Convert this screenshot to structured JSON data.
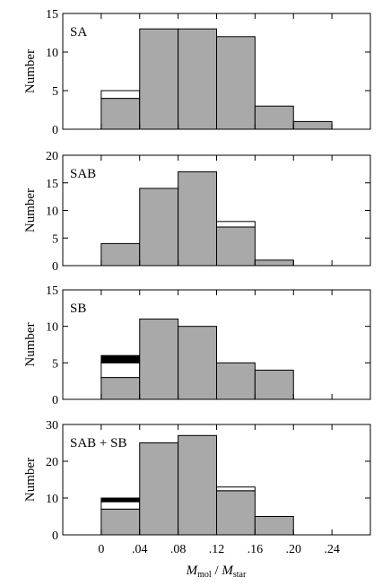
{
  "chart_data": [
    {
      "type": "bar",
      "panel_label": "SA",
      "ylabel": "Number",
      "ylim": [
        0,
        15
      ],
      "yticks": [
        0,
        5,
        10,
        15
      ],
      "bins": [
        "0-.04",
        ".04-.08",
        ".08-.12",
        ".12-.16",
        ".16-.20",
        ".20-.24"
      ],
      "series": [
        {
          "fill": "gray",
          "values": [
            4,
            13,
            13,
            12,
            3,
            1
          ]
        },
        {
          "fill": "white",
          "values": [
            1,
            0,
            0,
            0,
            0,
            0
          ]
        },
        {
          "fill": "black",
          "values": [
            0,
            0,
            0,
            0,
            0,
            0
          ]
        }
      ]
    },
    {
      "type": "bar",
      "panel_label": "SAB",
      "ylabel": "Number",
      "ylim": [
        0,
        20
      ],
      "yticks": [
        0,
        5,
        10,
        15,
        20
      ],
      "bins": [
        "0-.04",
        ".04-.08",
        ".08-.12",
        ".12-.16",
        ".16-.20",
        ".20-.24"
      ],
      "series": [
        {
          "fill": "gray",
          "values": [
            4,
            14,
            17,
            7,
            1,
            0
          ]
        },
        {
          "fill": "white",
          "values": [
            0,
            0,
            0,
            1,
            0,
            0
          ]
        },
        {
          "fill": "black",
          "values": [
            0,
            0,
            0,
            0,
            0,
            0
          ]
        }
      ]
    },
    {
      "type": "bar",
      "panel_label": "SB",
      "ylabel": "Number",
      "ylim": [
        0,
        15
      ],
      "yticks": [
        0,
        5,
        10,
        15
      ],
      "bins": [
        "0-.04",
        ".04-.08",
        ".08-.12",
        ".12-.16",
        ".16-.20",
        ".20-.24"
      ],
      "series": [
        {
          "fill": "gray",
          "values": [
            3,
            11,
            10,
            5,
            4,
            0
          ]
        },
        {
          "fill": "white",
          "values": [
            2,
            0,
            0,
            0,
            0,
            0
          ]
        },
        {
          "fill": "black",
          "values": [
            1,
            0,
            0,
            0,
            0,
            0
          ]
        }
      ]
    },
    {
      "type": "bar",
      "panel_label": "SAB + SB",
      "ylabel": "Number",
      "ylim": [
        0,
        30
      ],
      "yticks": [
        0,
        10,
        20,
        30
      ],
      "bins": [
        "0-.04",
        ".04-.08",
        ".08-.12",
        ".12-.16",
        ".16-.20",
        ".20-.24"
      ],
      "series": [
        {
          "fill": "gray",
          "values": [
            7,
            25,
            27,
            12,
            5,
            0
          ]
        },
        {
          "fill": "white",
          "values": [
            2,
            0,
            0,
            1,
            0,
            0
          ]
        },
        {
          "fill": "black",
          "values": [
            1,
            0,
            0,
            0,
            0,
            0
          ]
        }
      ]
    }
  ],
  "x_axis": {
    "xlim": [
      -0.04,
      0.28
    ],
    "bin_edges": [
      0,
      0.04,
      0.08,
      0.12,
      0.16,
      0.2,
      0.24
    ],
    "ticks": [
      0,
      0.04,
      0.08,
      0.12,
      0.16,
      0.2,
      0.24
    ],
    "tick_labels": [
      "0",
      ".04",
      ".08",
      ".12",
      ".16",
      ".20",
      ".24"
    ],
    "label_main": "M",
    "label_sub": "mol",
    "label_sep": " / ",
    "label_main2": "M",
    "label_sub2": "star"
  },
  "colors": {
    "gray": "#a9a9a9",
    "white": "#ffffff",
    "black": "#000000",
    "frame": "#000000"
  }
}
